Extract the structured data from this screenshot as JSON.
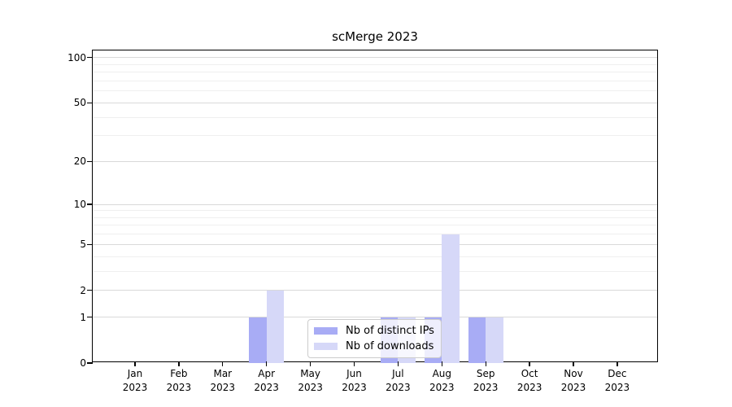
{
  "chart_data": {
    "type": "bar",
    "title": "scMerge 2023",
    "categories": [
      "Jan",
      "Feb",
      "Mar",
      "Apr",
      "May",
      "Jun",
      "Jul",
      "Aug",
      "Sep",
      "Oct",
      "Nov",
      "Dec"
    ],
    "category_year": "2023",
    "series": [
      {
        "name": "Nb of distinct IPs",
        "color": "#a8acf5",
        "values": [
          0,
          0,
          0,
          1,
          0,
          0,
          1,
          1,
          1,
          0,
          0,
          0
        ]
      },
      {
        "name": "Nb of downloads",
        "color": "#d6d8f8",
        "values": [
          0,
          0,
          0,
          2,
          0,
          0,
          1,
          6,
          1,
          0,
          0,
          0
        ]
      }
    ],
    "yscale": "log1p",
    "yticks": [
      0,
      1,
      2,
      5,
      10,
      20,
      50,
      100
    ],
    "minor_yticks": [
      3,
      4,
      6,
      7,
      8,
      9,
      30,
      40,
      60,
      70,
      80,
      90
    ],
    "ylim": [
      0,
      115
    ],
    "xlabel": "",
    "ylabel": "",
    "grid": "horizontal",
    "legend_position": "lower center",
    "colors": {
      "grid_major": "#d9d9d9",
      "grid_minor": "#efefef",
      "axis": "#000000",
      "legend_border": "#cccccc"
    }
  }
}
